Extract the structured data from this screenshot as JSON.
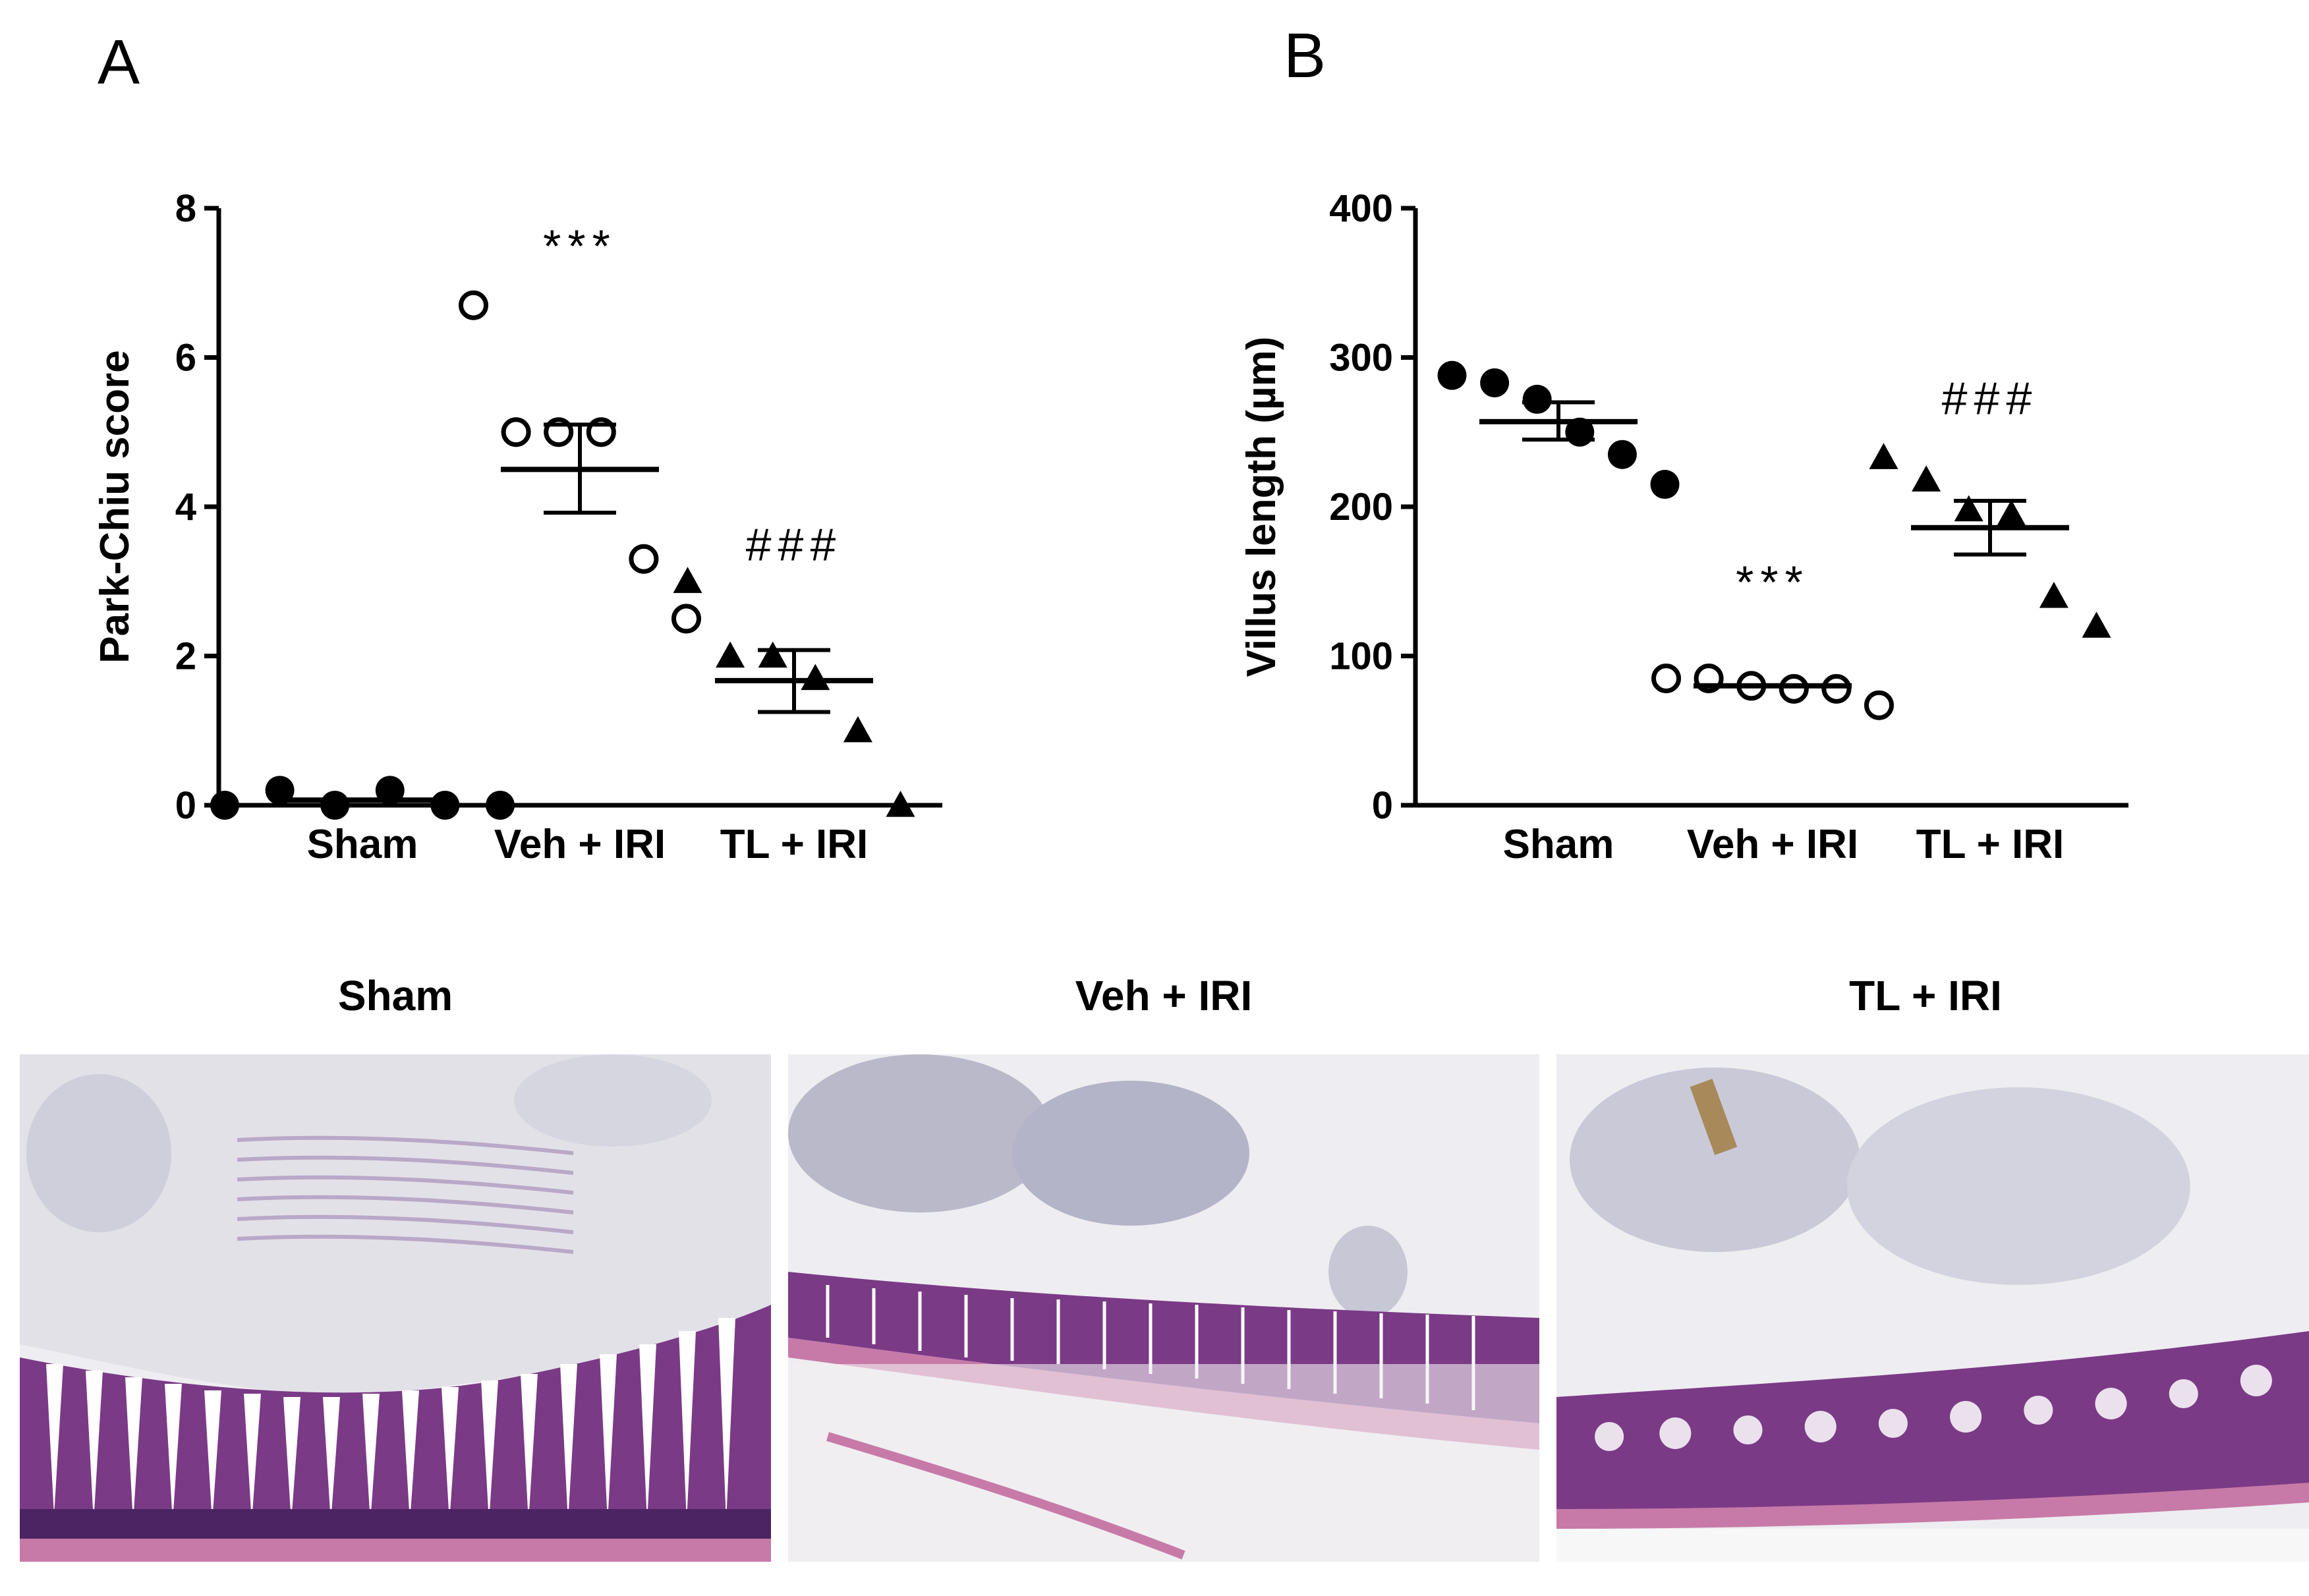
{
  "panels": [
    {
      "letter": "A"
    },
    {
      "letter": "B"
    }
  ],
  "chart_data": [
    {
      "type": "scatter",
      "ylabel": "Park-Chiu score",
      "xlabel": "",
      "ylim": [
        0,
        8
      ],
      "yticks": [
        0,
        2,
        4,
        6,
        8
      ],
      "categories": [
        "Sham",
        "Veh + IRI",
        "TL + IRI"
      ],
      "series": [
        {
          "category": "Sham",
          "marker": "filled-circle",
          "values": [
            0,
            0.2,
            0,
            0.2,
            0,
            0
          ],
          "mean": 0.07
        },
        {
          "category": "Veh + IRI",
          "marker": "open-circle",
          "values": [
            6.7,
            5,
            5,
            5,
            3.3,
            2.5
          ],
          "mean": 4.5,
          "sem_low": 3.92,
          "sem_high": 5.1
        },
        {
          "category": "TL + IRI",
          "marker": "filled-triangle",
          "values": [
            3,
            2,
            2,
            1.7,
            1,
            0
          ],
          "mean": 1.67,
          "sem_low": 1.25,
          "sem_high": 2.08
        }
      ],
      "annotations": [
        {
          "category": "Veh + IRI",
          "text": "***",
          "y": 7.5
        },
        {
          "category": "TL + IRI",
          "text": "###",
          "y": 3.5
        }
      ]
    },
    {
      "type": "scatter",
      "ylabel": "Villus length (µm)",
      "xlabel": "",
      "ylim": [
        0,
        400
      ],
      "yticks": [
        0,
        100,
        200,
        300,
        400
      ],
      "categories": [
        "Sham",
        "Veh + IRI",
        "TL + IRI"
      ],
      "series": [
        {
          "category": "Sham",
          "marker": "filled-circle",
          "values": [
            288,
            283,
            272,
            250,
            235,
            215
          ],
          "mean": 257,
          "sem_low": 245,
          "sem_high": 270
        },
        {
          "category": "Veh + IRI",
          "marker": "open-circle",
          "values": [
            85,
            85,
            80,
            78,
            78,
            67
          ],
          "mean": 80
        },
        {
          "category": "TL + IRI",
          "marker": "filled-triangle",
          "values": [
            233,
            218,
            198,
            195,
            140,
            120
          ],
          "mean": 186,
          "sem_low": 168,
          "sem_high": 204
        }
      ],
      "annotations": [
        {
          "category": "Veh + IRI",
          "text": "***",
          "y": 150
        },
        {
          "category": "TL + IRI",
          "text": "###",
          "y": 273
        }
      ]
    }
  ],
  "histology": [
    {
      "title": "Sham"
    },
    {
      "title": "Veh + IRI"
    },
    {
      "title": "TL + IRI"
    }
  ],
  "colors": {
    "ink": "#000000",
    "villus": "#7a3a86",
    "villus_dark": "#4c2463",
    "submucosa": "#c77aa8",
    "lumen": "#e6e3ea",
    "debris": "#8e8ea8"
  }
}
